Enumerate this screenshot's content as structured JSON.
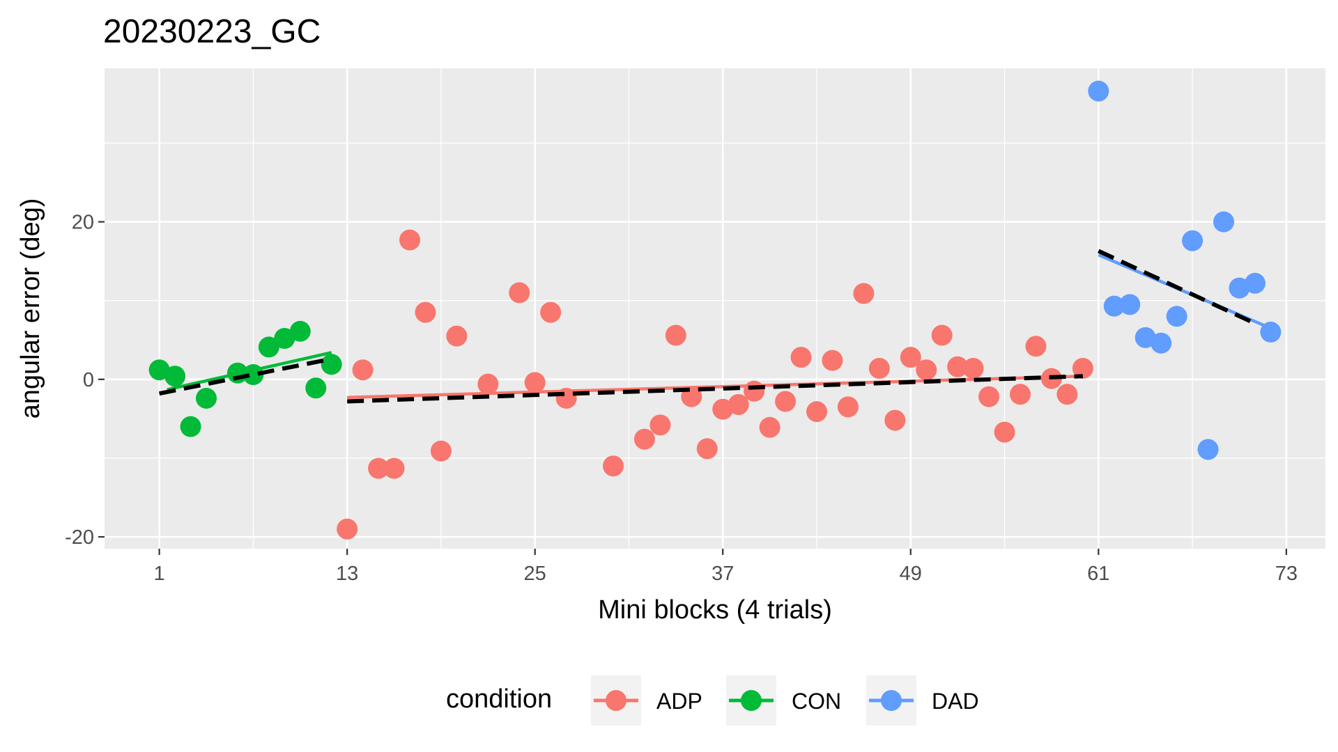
{
  "chart_data": {
    "type": "scatter",
    "title": "20230223_GC",
    "xlabel": "Mini blocks (4 trials)",
    "ylabel": "angular error (deg)",
    "xlim": [
      -2.5,
      75.5
    ],
    "ylim": [
      -21.5,
      39.5
    ],
    "x_ticks": [
      1,
      13,
      25,
      37,
      49,
      61,
      73
    ],
    "x_tick_labels": [
      "1",
      "13",
      "25",
      "37",
      "49",
      "61",
      "73"
    ],
    "y_ticks": [
      -20,
      0,
      20
    ],
    "y_tick_labels": [
      "-20",
      "0",
      "20"
    ],
    "grid": true,
    "legend_position": "bottom",
    "legend_title": "condition",
    "trend_line_style": "dashed black linear fit per condition",
    "series": [
      {
        "name": "ADP",
        "color": "#F8766D",
        "points": [
          [
            13,
            -19
          ],
          [
            14,
            1.2
          ],
          [
            15,
            -11.3
          ],
          [
            16,
            -11.3
          ],
          [
            17,
            17.7
          ],
          [
            18,
            8.5
          ],
          [
            19,
            -9.1
          ],
          [
            20,
            5.5
          ],
          [
            22,
            -0.6
          ],
          [
            24,
            11.0
          ],
          [
            25,
            -0.4
          ],
          [
            26,
            8.5
          ],
          [
            27,
            -2.4
          ],
          [
            30,
            -11.0
          ],
          [
            32,
            -7.6
          ],
          [
            33,
            -5.8
          ],
          [
            34,
            5.6
          ],
          [
            35,
            -2.2
          ],
          [
            36,
            -8.8
          ],
          [
            37,
            -3.8
          ],
          [
            38,
            -3.2
          ],
          [
            39,
            -1.5
          ],
          [
            40,
            -6.1
          ],
          [
            41,
            -2.8
          ],
          [
            42,
            2.8
          ],
          [
            43,
            -4.1
          ],
          [
            44,
            2.4
          ],
          [
            45,
            -3.5
          ],
          [
            46,
            10.9
          ],
          [
            47,
            1.4
          ],
          [
            48,
            -5.2
          ],
          [
            49,
            2.8
          ],
          [
            50,
            1.2
          ],
          [
            51,
            5.6
          ],
          [
            52,
            1.6
          ],
          [
            53,
            1.4
          ],
          [
            54,
            -2.2
          ],
          [
            55,
            -6.7
          ],
          [
            56,
            -1.9
          ],
          [
            57,
            4.2
          ],
          [
            58,
            0.1
          ],
          [
            59,
            -1.9
          ],
          [
            60,
            1.4
          ]
        ],
        "fit": {
          "x": [
            13,
            60
          ],
          "y": [
            -2.3,
            0.4
          ]
        },
        "dashed_fit": {
          "x": [
            13,
            60
          ],
          "y": [
            -2.8,
            0.4
          ]
        }
      },
      {
        "name": "CON",
        "color": "#00BA38",
        "points": [
          [
            1,
            1.2
          ],
          [
            2,
            0.4
          ],
          [
            3,
            -6.0
          ],
          [
            4,
            -2.4
          ],
          [
            6,
            0.8
          ],
          [
            7,
            0.6
          ],
          [
            8,
            4.1
          ],
          [
            9,
            5.2
          ],
          [
            10,
            6.1
          ],
          [
            11,
            -1.1
          ],
          [
            12,
            1.9
          ]
        ],
        "fit": {
          "x": [
            1.5,
            12
          ],
          "y": [
            -1.3,
            3.4
          ]
        },
        "dashed_fit": {
          "x": [
            1,
            12
          ],
          "y": [
            -1.8,
            2.6
          ]
        }
      },
      {
        "name": "DAD",
        "color": "#619CFF",
        "points": [
          [
            61,
            36.6
          ],
          [
            62,
            9.3
          ],
          [
            63,
            9.5
          ],
          [
            64,
            5.3
          ],
          [
            65,
            4.6
          ],
          [
            66,
            8.0
          ],
          [
            67,
            17.6
          ],
          [
            68,
            -8.9
          ],
          [
            69,
            20.0
          ],
          [
            70,
            11.6
          ],
          [
            71,
            12.2
          ],
          [
            72,
            6.0
          ]
        ],
        "fit": {
          "x": [
            61,
            72
          ],
          "y": [
            15.8,
            6.5
          ]
        },
        "dashed_fit": {
          "x": [
            61,
            71
          ],
          "y": [
            16.3,
            7.1
          ]
        }
      }
    ]
  }
}
